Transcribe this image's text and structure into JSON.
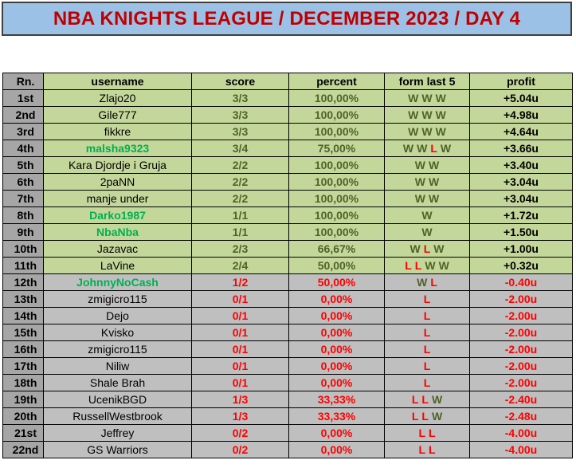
{
  "title": "NBA KNIGHTS LEAGUE / DECEMBER 2023 / DAY 4",
  "headers": {
    "rank": "Rn.",
    "username": "username",
    "score": "score",
    "percent": "percent",
    "form": "form last 5",
    "profit": "profit"
  },
  "rows": [
    {
      "rank": "1st",
      "username": "Zlajo20",
      "highlight": false,
      "score": "3/3",
      "percent": "100,00%",
      "form": [
        "W",
        "W",
        "W"
      ],
      "profit": "+5.04u",
      "status": "positive"
    },
    {
      "rank": "2nd",
      "username": "Gile777",
      "highlight": false,
      "score": "3/3",
      "percent": "100,00%",
      "form": [
        "W",
        "W",
        "W"
      ],
      "profit": "+4.98u",
      "status": "positive"
    },
    {
      "rank": "3rd",
      "username": "fikkre",
      "highlight": false,
      "score": "3/3",
      "percent": "100,00%",
      "form": [
        "W",
        "W",
        "W"
      ],
      "profit": "+4.64u",
      "status": "positive"
    },
    {
      "rank": "4th",
      "username": "malsha9323",
      "highlight": true,
      "score": "3/4",
      "percent": "75,00%",
      "form": [
        "W",
        "W",
        "L",
        "W"
      ],
      "profit": "+3.66u",
      "status": "positive"
    },
    {
      "rank": "5th",
      "username": "Kara Djordje i Gruja",
      "highlight": false,
      "score": "2/2",
      "percent": "100,00%",
      "form": [
        "W",
        "W"
      ],
      "profit": "+3.40u",
      "status": "positive"
    },
    {
      "rank": "6th",
      "username": "2paNN",
      "highlight": false,
      "score": "2/2",
      "percent": "100,00%",
      "form": [
        "W",
        "W"
      ],
      "profit": "+3.04u",
      "status": "positive"
    },
    {
      "rank": "7th",
      "username": "manje under",
      "highlight": false,
      "score": "2/2",
      "percent": "100,00%",
      "form": [
        "W",
        "W"
      ],
      "profit": "+3.04u",
      "status": "positive"
    },
    {
      "rank": "8th",
      "username": "Darko1987",
      "highlight": true,
      "score": "1/1",
      "percent": "100,00%",
      "form": [
        "W"
      ],
      "profit": "+1.72u",
      "status": "positive"
    },
    {
      "rank": "9th",
      "username": "NbaNba",
      "highlight": true,
      "score": "1/1",
      "percent": "100,00%",
      "form": [
        "W"
      ],
      "profit": "+1.50u",
      "status": "positive"
    },
    {
      "rank": "10th",
      "username": "Jazavac",
      "highlight": false,
      "score": "2/3",
      "percent": "66,67%",
      "form": [
        "W",
        "L",
        "W"
      ],
      "profit": "+1.00u",
      "status": "positive"
    },
    {
      "rank": "11th",
      "username": "LaVine",
      "highlight": false,
      "score": "2/4",
      "percent": "50,00%",
      "form": [
        "L",
        "L",
        "W",
        "W"
      ],
      "profit": "+0.32u",
      "status": "positive"
    },
    {
      "rank": "12th",
      "username": "JohnnyNoCash",
      "highlight": true,
      "score": "1/2",
      "percent": "50,00%",
      "form": [
        "W",
        "L"
      ],
      "profit": "-0.40u",
      "status": "negative"
    },
    {
      "rank": "13th",
      "username": "zmigicro115",
      "highlight": false,
      "score": "0/1",
      "percent": "0,00%",
      "form": [
        "L"
      ],
      "profit": "-2.00u",
      "status": "negative"
    },
    {
      "rank": "14th",
      "username": "Dejo",
      "highlight": false,
      "score": "0/1",
      "percent": "0,00%",
      "form": [
        "L"
      ],
      "profit": "-2.00u",
      "status": "negative"
    },
    {
      "rank": "15th",
      "username": "Kvisko",
      "highlight": false,
      "score": "0/1",
      "percent": "0,00%",
      "form": [
        "L"
      ],
      "profit": "-2.00u",
      "status": "negative"
    },
    {
      "rank": "16th",
      "username": "zmigicro115",
      "highlight": false,
      "score": "0/1",
      "percent": "0,00%",
      "form": [
        "L"
      ],
      "profit": "-2.00u",
      "status": "negative"
    },
    {
      "rank": "17th",
      "username": "Niliw",
      "highlight": false,
      "score": "0/1",
      "percent": "0,00%",
      "form": [
        "L"
      ],
      "profit": "-2.00u",
      "status": "negative"
    },
    {
      "rank": "18th",
      "username": "Shale Brah",
      "highlight": false,
      "score": "0/1",
      "percent": "0,00%",
      "form": [
        "L"
      ],
      "profit": "-2.00u",
      "status": "negative"
    },
    {
      "rank": "19th",
      "username": "UcenikBGD",
      "highlight": false,
      "score": "1/3",
      "percent": "33,33%",
      "form": [
        "L",
        "L",
        "W"
      ],
      "profit": "-2.40u",
      "status": "negative"
    },
    {
      "rank": "20th",
      "username": "RussellWestbrook",
      "highlight": false,
      "score": "1/3",
      "percent": "33,33%",
      "form": [
        "L",
        "L",
        "W"
      ],
      "profit": "-2.48u",
      "status": "negative"
    },
    {
      "rank": "21st",
      "username": "Jeffrey",
      "highlight": false,
      "score": "0/2",
      "percent": "0,00%",
      "form": [
        "L",
        "L"
      ],
      "profit": "-4.00u",
      "status": "negative"
    },
    {
      "rank": "22nd",
      "username": "GS Warriors",
      "highlight": false,
      "score": "0/2",
      "percent": "0,00%",
      "form": [
        "L",
        "L"
      ],
      "profit": "-4.00u",
      "status": "negative"
    }
  ],
  "colors": {
    "banner": "#9bc2e6",
    "title": "#c00000",
    "positive_row": "#c4d79b",
    "negative_row": "#bfbfbf",
    "win": "#4f6228",
    "loss": "#ff0000",
    "highlight_user": "#00b050"
  }
}
